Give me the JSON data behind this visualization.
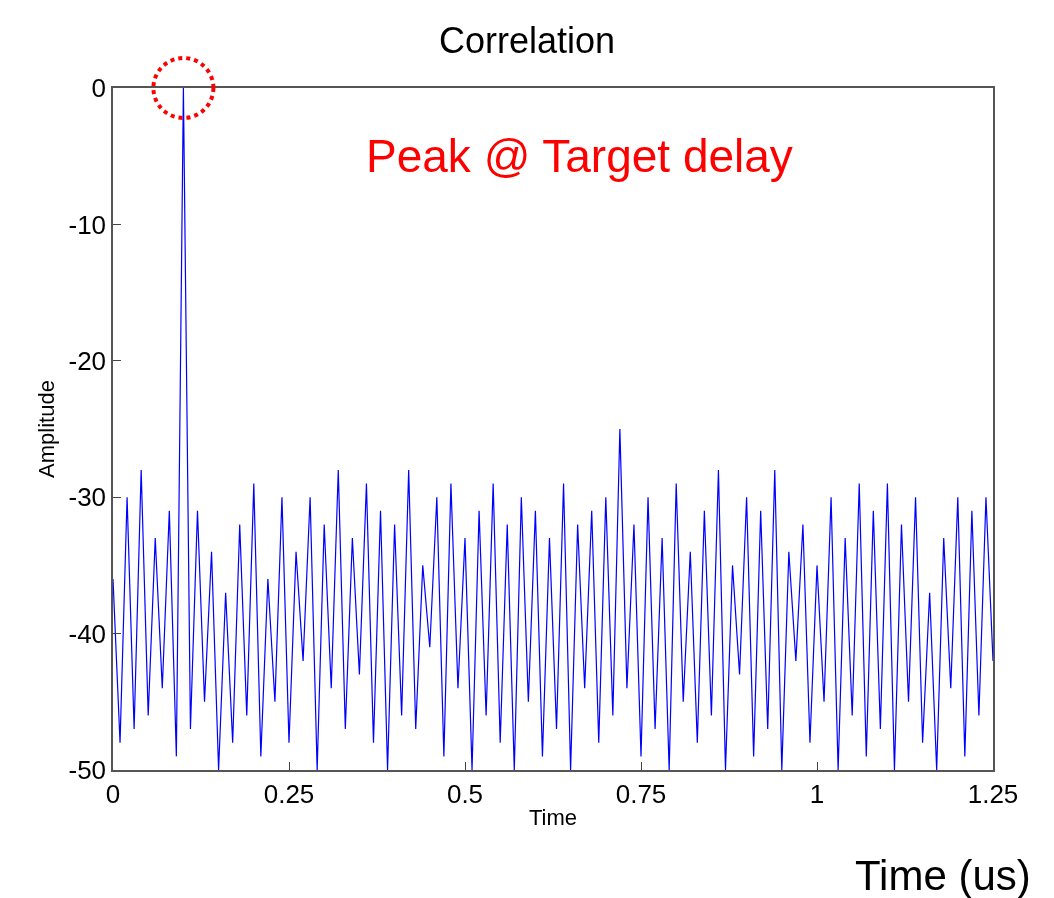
{
  "chart_data": {
    "type": "line",
    "title": "Correlation",
    "xlabel": "Time",
    "ylabel": "Amplitude",
    "annotations": [
      "Peak @ Target delay",
      "Time (us)"
    ],
    "x": [
      0,
      0.01,
      0.02,
      0.03,
      0.04,
      0.05,
      0.06,
      0.07,
      0.08,
      0.09,
      0.1,
      0.11,
      0.12,
      0.13,
      0.14,
      0.15,
      0.16,
      0.17,
      0.18,
      0.19,
      0.2,
      0.21,
      0.22,
      0.23,
      0.24,
      0.25,
      0.26,
      0.27,
      0.28,
      0.29,
      0.3,
      0.31,
      0.32,
      0.33,
      0.34,
      0.35,
      0.36,
      0.37,
      0.38,
      0.39,
      0.4,
      0.41,
      0.42,
      0.43,
      0.44,
      0.45,
      0.46,
      0.47,
      0.48,
      0.49,
      0.5,
      0.51,
      0.52,
      0.53,
      0.54,
      0.55,
      0.56,
      0.57,
      0.58,
      0.59,
      0.6,
      0.61,
      0.62,
      0.63,
      0.64,
      0.65,
      0.66,
      0.67,
      0.68,
      0.69,
      0.7,
      0.71,
      0.72,
      0.73,
      0.74,
      0.75,
      0.76,
      0.77,
      0.78,
      0.79,
      0.8,
      0.81,
      0.82,
      0.83,
      0.84,
      0.85,
      0.86,
      0.87,
      0.88,
      0.89,
      0.9,
      0.91,
      0.92,
      0.93,
      0.94,
      0.95,
      0.96,
      0.97,
      0.98,
      0.99,
      1.0,
      1.01,
      1.02,
      1.03,
      1.04,
      1.05,
      1.06,
      1.07,
      1.08,
      1.09,
      1.1,
      1.11,
      1.12,
      1.13,
      1.14,
      1.15,
      1.16,
      1.17,
      1.18,
      1.19,
      1.2,
      1.21,
      1.22,
      1.23,
      1.24,
      1.25
    ],
    "series": [
      {
        "color": "#0000ff",
        "values": [
          -36,
          -48,
          -30,
          -47,
          -28,
          -46,
          -33,
          -44,
          -31,
          -49,
          0,
          -47,
          -31,
          -45,
          -34,
          -50,
          -37,
          -48,
          -32,
          -46,
          -29,
          -49,
          -36,
          -45,
          -30,
          -48,
          -34,
          -42,
          -30,
          -50,
          -32,
          -44,
          -28,
          -47,
          -33,
          -43,
          -29,
          -48,
          -31,
          -50,
          -32,
          -46,
          -28,
          -47,
          -35,
          -41,
          -30,
          -49,
          -29,
          -44,
          -33,
          -50,
          -31,
          -46,
          -29,
          -48,
          -32,
          -50,
          -30,
          -45,
          -31,
          -49,
          -33,
          -47,
          -29,
          -50,
          -32,
          -44,
          -31,
          -48,
          -30,
          -46,
          -25,
          -44,
          -32,
          -49,
          -30,
          -47,
          -33,
          -50,
          -29,
          -45,
          -34,
          -48,
          -31,
          -46,
          -28,
          -50,
          -35,
          -43,
          -30,
          -49,
          -31,
          -47,
          -28,
          -50,
          -34,
          -42,
          -32,
          -48,
          -35,
          -45,
          -30,
          -50,
          -33,
          -46,
          -29,
          -49,
          -31,
          -47,
          -29,
          -50,
          -32,
          -45,
          -30,
          -48,
          -37,
          -50,
          -33,
          -44,
          -30,
          -49,
          -31,
          -46,
          -30,
          -42
        ]
      }
    ],
    "xlim": [
      0,
      1.25
    ],
    "xticks": [
      0,
      {
        "value": 0.25,
        "label": "0.25"
      },
      0.5,
      {
        "value": 0.75,
        "label": "0.75"
      },
      1,
      {
        "value": 1.25,
        "label": "1.25"
      }
    ],
    "ylim": [
      -50,
      0
    ],
    "yticks": [
      -50,
      -40,
      -30,
      -20,
      -10,
      0
    ],
    "legend": false,
    "marker": "none",
    "line_style": "solid"
  }
}
